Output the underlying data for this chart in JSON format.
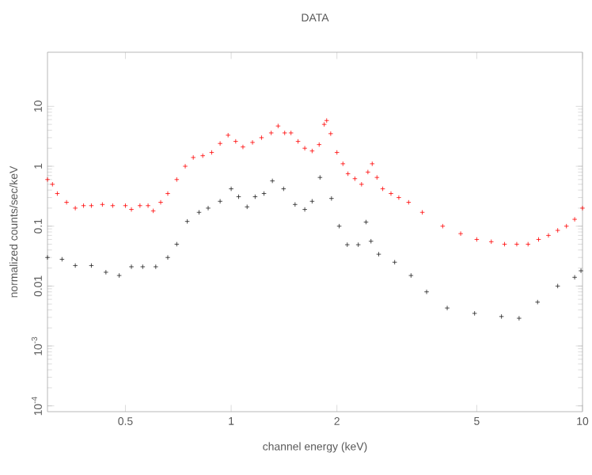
{
  "chart_data": {
    "type": "scatter",
    "title": "DATA",
    "xlabel": "channel energy (keV)",
    "ylabel": "normalized counts/sec/keV",
    "log": "xy",
    "marker": "cross",
    "xlim": [
      0.3,
      10
    ],
    "ylim": [
      8e-05,
      80
    ],
    "xticks": [
      0.5,
      1,
      2,
      5,
      10
    ],
    "yticks": [
      {
        "value": 0.0001,
        "label": "10$^{-4}$"
      },
      {
        "value": 0.001,
        "label": "10$^{-3}$"
      },
      0.01,
      0.1,
      1,
      10
    ],
    "series": [
      {
        "color": "#ff0000",
        "x": [
          0.3,
          0.31,
          0.32,
          0.34,
          0.36,
          0.38,
          0.4,
          0.43,
          0.46,
          0.5,
          0.52,
          0.55,
          0.58,
          0.6,
          0.63,
          0.66,
          0.7,
          0.74,
          0.78,
          0.83,
          0.88,
          0.93,
          0.98,
          1.03,
          1.08,
          1.15,
          1.22,
          1.3,
          1.36,
          1.42,
          1.48,
          1.55,
          1.62,
          1.7,
          1.78,
          1.84,
          1.87,
          1.92,
          2.0,
          2.08,
          2.15,
          2.25,
          2.35,
          2.45,
          2.52,
          2.6,
          2.7,
          2.85,
          3.0,
          3.2,
          3.5,
          4.0,
          4.5,
          5.0,
          5.5,
          6.0,
          6.5,
          7.0,
          7.5,
          8.0,
          8.5,
          9.0,
          9.5,
          10
        ],
        "values": [
          0.6,
          0.5,
          0.35,
          0.25,
          0.2,
          0.22,
          0.22,
          0.23,
          0.22,
          0.22,
          0.19,
          0.22,
          0.22,
          0.18,
          0.25,
          0.35,
          0.6,
          1.0,
          1.4,
          1.5,
          1.7,
          2.4,
          3.3,
          2.6,
          2.1,
          2.5,
          3.0,
          3.6,
          4.7,
          3.6,
          3.6,
          2.6,
          2.0,
          1.8,
          2.3,
          5.0,
          5.8,
          3.5,
          1.7,
          1.1,
          0.75,
          0.62,
          0.5,
          0.8,
          1.1,
          0.65,
          0.42,
          0.35,
          0.3,
          0.25,
          0.17,
          0.1,
          0.075,
          0.06,
          0.055,
          0.05,
          0.05,
          0.05,
          0.06,
          0.07,
          0.085,
          0.1,
          0.13,
          0.2
        ]
      },
      {
        "color": "#202020",
        "x": [
          0.3,
          0.33,
          0.36,
          0.4,
          0.44,
          0.48,
          0.52,
          0.56,
          0.61,
          0.66,
          0.7,
          0.75,
          0.81,
          0.86,
          0.93,
          1.0,
          1.05,
          1.11,
          1.17,
          1.24,
          1.31,
          1.41,
          1.52,
          1.62,
          1.7,
          1.79,
          1.93,
          2.03,
          2.14,
          2.3,
          2.42,
          2.5,
          2.63,
          2.92,
          3.25,
          3.6,
          4.12,
          4.93,
          5.88,
          6.6,
          7.45,
          8.5,
          9.5,
          9.9
        ],
        "values": [
          0.03,
          0.028,
          0.022,
          0.022,
          0.017,
          0.015,
          0.021,
          0.021,
          0.021,
          0.03,
          0.05,
          0.12,
          0.17,
          0.2,
          0.26,
          0.42,
          0.31,
          0.21,
          0.31,
          0.35,
          0.57,
          0.42,
          0.23,
          0.19,
          0.26,
          0.65,
          0.29,
          0.1,
          0.049,
          0.049,
          0.117,
          0.056,
          0.034,
          0.025,
          0.015,
          0.008,
          0.0043,
          0.0035,
          0.0031,
          0.0029,
          0.0054,
          0.01,
          0.014,
          0.018
        ]
      }
    ]
  }
}
